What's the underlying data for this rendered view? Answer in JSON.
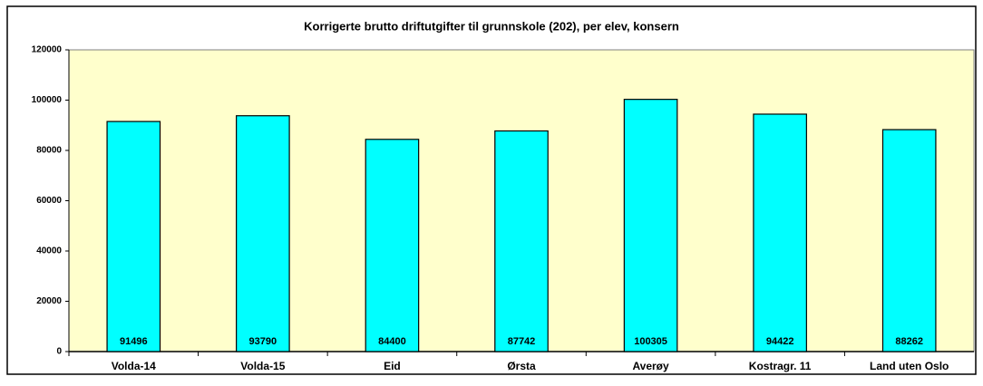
{
  "chart_data": {
    "type": "bar",
    "title": "Korrigerte brutto driftutgifter til grunnskole (202), per elev, konsern",
    "categories": [
      "Volda-14",
      "Volda-15",
      "Eid",
      "Ørsta",
      "Averøy",
      "Kostragr. 11",
      "Land uten Oslo"
    ],
    "values": [
      91496,
      93790,
      84400,
      87742,
      100305,
      94422,
      88262
    ],
    "color": "#00ffff",
    "plot_background": "#ffffcc",
    "ylim": [
      0,
      120000
    ],
    "yticks": [
      0,
      20000,
      40000,
      60000,
      80000,
      100000,
      120000
    ],
    "grid": false
  }
}
